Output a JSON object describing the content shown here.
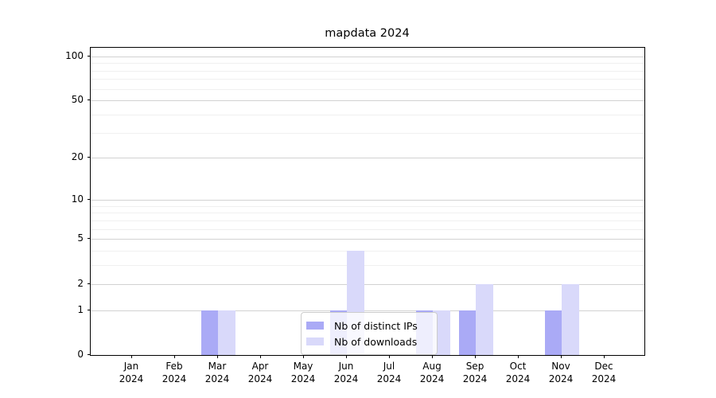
{
  "chart_data": {
    "type": "bar",
    "title": "mapdata 2024",
    "categories": [
      "Jan",
      "Feb",
      "Mar",
      "Apr",
      "May",
      "Jun",
      "Jul",
      "Aug",
      "Sep",
      "Oct",
      "Nov",
      "Dec"
    ],
    "category_year": "2024",
    "series": [
      {
        "name": "Nb of distinct IPs",
        "color": "#aaaaf6",
        "values": [
          0,
          0,
          1,
          0,
          0,
          1,
          0,
          1,
          1,
          0,
          1,
          0
        ]
      },
      {
        "name": "Nb of downloads",
        "color": "#d9d9fa",
        "values": [
          0,
          0,
          1,
          0,
          0,
          4,
          0,
          1,
          2,
          0,
          2,
          0
        ]
      }
    ],
    "y_axis": {
      "scale": "log1p",
      "ticks": [
        0,
        1,
        2,
        5,
        10,
        20,
        50,
        100
      ],
      "minor_ticks": [
        3,
        4,
        6,
        7,
        8,
        9,
        30,
        40,
        60,
        70,
        80,
        90
      ],
      "range_top_value": 117
    },
    "x_axis": {
      "label_line2": "2024"
    },
    "grid": true,
    "legend": {
      "position": "bottom-center"
    },
    "colors": {
      "major_grid": "#d2d2d2",
      "minor_grid": "#f0f0f0",
      "axis": "#000000",
      "background": "#ffffff"
    }
  }
}
